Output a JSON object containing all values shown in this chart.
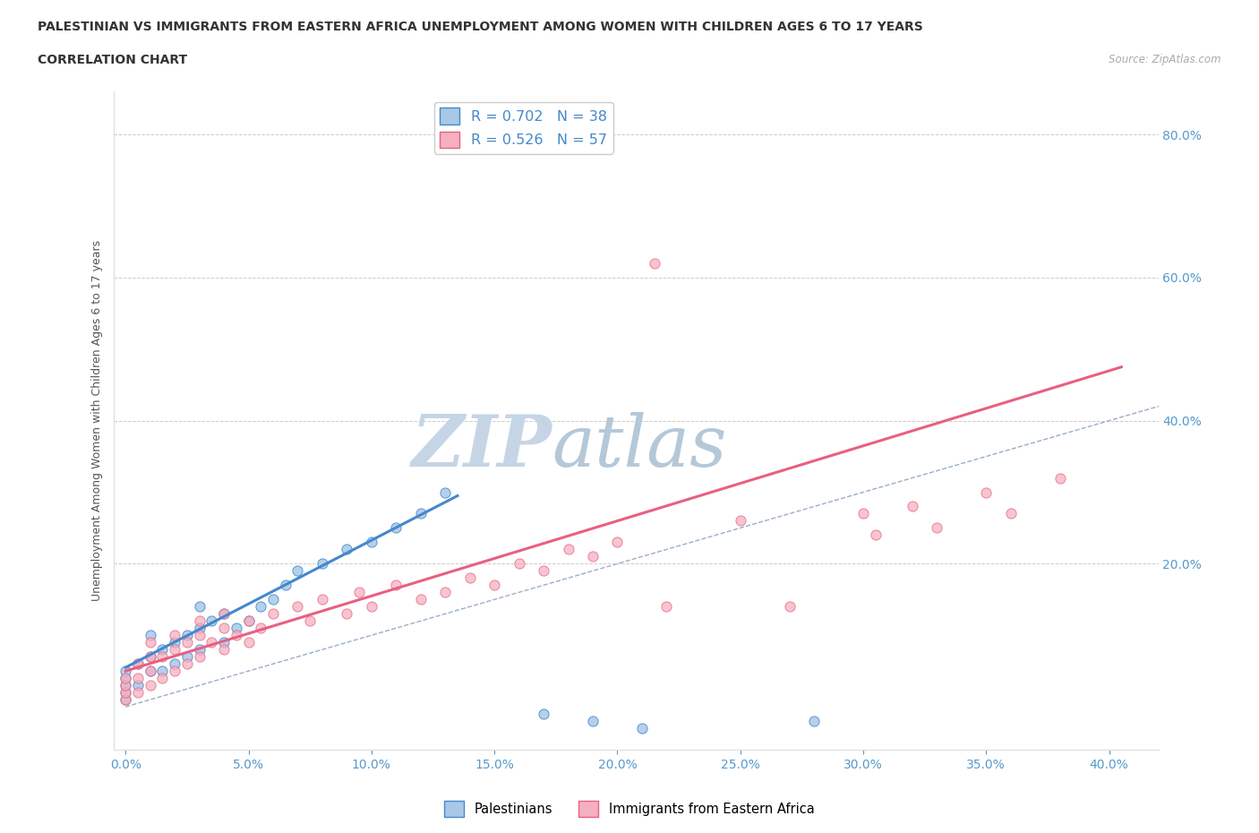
{
  "title_line1": "PALESTINIAN VS IMMIGRANTS FROM EASTERN AFRICA UNEMPLOYMENT AMONG WOMEN WITH CHILDREN AGES 6 TO 17 YEARS",
  "title_line2": "CORRELATION CHART",
  "source_text": "Source: ZipAtlas.com",
  "ylabel_label": "Unemployment Among Women with Children Ages 6 to 17 years",
  "xlim": [
    -0.005,
    0.42
  ],
  "ylim": [
    -0.06,
    0.86
  ],
  "r_palestinian": 0.702,
  "n_palestinian": 38,
  "r_eastern_africa": 0.526,
  "n_eastern_africa": 57,
  "color_palestinian": "#a8c8e8",
  "color_eastern_africa": "#f5b0c0",
  "color_line_palestinian": "#4488cc",
  "color_line_eastern_africa": "#e86080",
  "color_diag": "#99aec8",
  "watermark_zip": "ZIP",
  "watermark_atlas": "atlas",
  "watermark_color_zip": "#c8d8e8",
  "watermark_color_atlas": "#b8ccd8",
  "pal_line_x0": 0.0,
  "pal_line_x1": 0.135,
  "ea_line_x0": 0.0,
  "ea_line_x1": 0.405,
  "pal_line_y0": 0.055,
  "pal_line_y1": 0.295,
  "ea_line_y0": 0.05,
  "ea_line_y1": 0.475,
  "right_yticks": [
    0.2,
    0.4,
    0.6,
    0.8
  ],
  "xticks": [
    0.0,
    0.05,
    0.1,
    0.15,
    0.2,
    0.25,
    0.3,
    0.35,
    0.4
  ],
  "palestinian_x": [
    0.0,
    0.0,
    0.0,
    0.0,
    0.0,
    0.005,
    0.005,
    0.01,
    0.01,
    0.01,
    0.015,
    0.015,
    0.02,
    0.02,
    0.025,
    0.025,
    0.03,
    0.03,
    0.03,
    0.035,
    0.04,
    0.04,
    0.045,
    0.05,
    0.055,
    0.06,
    0.065,
    0.07,
    0.08,
    0.09,
    0.1,
    0.11,
    0.12,
    0.13,
    0.17,
    0.19,
    0.21,
    0.28
  ],
  "palestinian_y": [
    0.01,
    0.02,
    0.03,
    0.04,
    0.05,
    0.03,
    0.06,
    0.05,
    0.07,
    0.1,
    0.05,
    0.08,
    0.06,
    0.09,
    0.07,
    0.1,
    0.08,
    0.11,
    0.14,
    0.12,
    0.09,
    0.13,
    0.11,
    0.12,
    0.14,
    0.15,
    0.17,
    0.19,
    0.2,
    0.22,
    0.23,
    0.25,
    0.27,
    0.3,
    -0.01,
    -0.02,
    -0.03,
    -0.02
  ],
  "eastern_africa_x": [
    0.0,
    0.0,
    0.0,
    0.0,
    0.005,
    0.005,
    0.005,
    0.01,
    0.01,
    0.01,
    0.01,
    0.015,
    0.015,
    0.02,
    0.02,
    0.02,
    0.025,
    0.025,
    0.03,
    0.03,
    0.03,
    0.035,
    0.04,
    0.04,
    0.04,
    0.045,
    0.05,
    0.05,
    0.055,
    0.06,
    0.07,
    0.075,
    0.08,
    0.09,
    0.095,
    0.1,
    0.11,
    0.12,
    0.13,
    0.14,
    0.15,
    0.16,
    0.17,
    0.18,
    0.19,
    0.2,
    0.215,
    0.22,
    0.25,
    0.27,
    0.3,
    0.305,
    0.32,
    0.33,
    0.35,
    0.36,
    0.38
  ],
  "eastern_africa_y": [
    0.01,
    0.02,
    0.03,
    0.04,
    0.02,
    0.04,
    0.06,
    0.03,
    0.05,
    0.07,
    0.09,
    0.04,
    0.07,
    0.05,
    0.08,
    0.1,
    0.06,
    0.09,
    0.07,
    0.1,
    0.12,
    0.09,
    0.08,
    0.11,
    0.13,
    0.1,
    0.09,
    0.12,
    0.11,
    0.13,
    0.14,
    0.12,
    0.15,
    0.13,
    0.16,
    0.14,
    0.17,
    0.15,
    0.16,
    0.18,
    0.17,
    0.2,
    0.19,
    0.22,
    0.21,
    0.23,
    0.62,
    0.14,
    0.26,
    0.14,
    0.27,
    0.24,
    0.28,
    0.25,
    0.3,
    0.27,
    0.32
  ]
}
